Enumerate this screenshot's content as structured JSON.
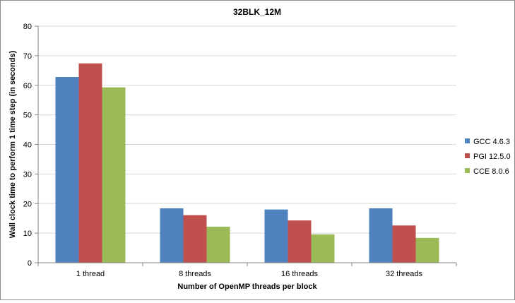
{
  "chart_data": {
    "type": "bar",
    "title": "32BLK_12M",
    "xlabel": "Number of OpenMP threads per block",
    "ylabel": "Wall clock time to perform 1 time step (in seconds)",
    "categories": [
      "1 thread",
      "8 threads",
      "16 threads",
      "32 threads"
    ],
    "ylim": [
      0,
      80
    ],
    "yticks": [
      "0",
      "10",
      "20",
      "30",
      "40",
      "50",
      "60",
      "70",
      "80"
    ],
    "grid": true,
    "legend_position": "right",
    "series": [
      {
        "name": "GCC 4.6.3",
        "color": "#4f81bd",
        "values": [
          62.8,
          18.4,
          18.0,
          18.4
        ]
      },
      {
        "name": "PGI 12.5.0",
        "color": "#c0504d",
        "values": [
          67.4,
          16.1,
          14.3,
          12.6
        ]
      },
      {
        "name": "CCE 8.0.6",
        "color": "#9bbb59",
        "values": [
          59.3,
          12.2,
          9.6,
          8.4
        ]
      }
    ]
  }
}
